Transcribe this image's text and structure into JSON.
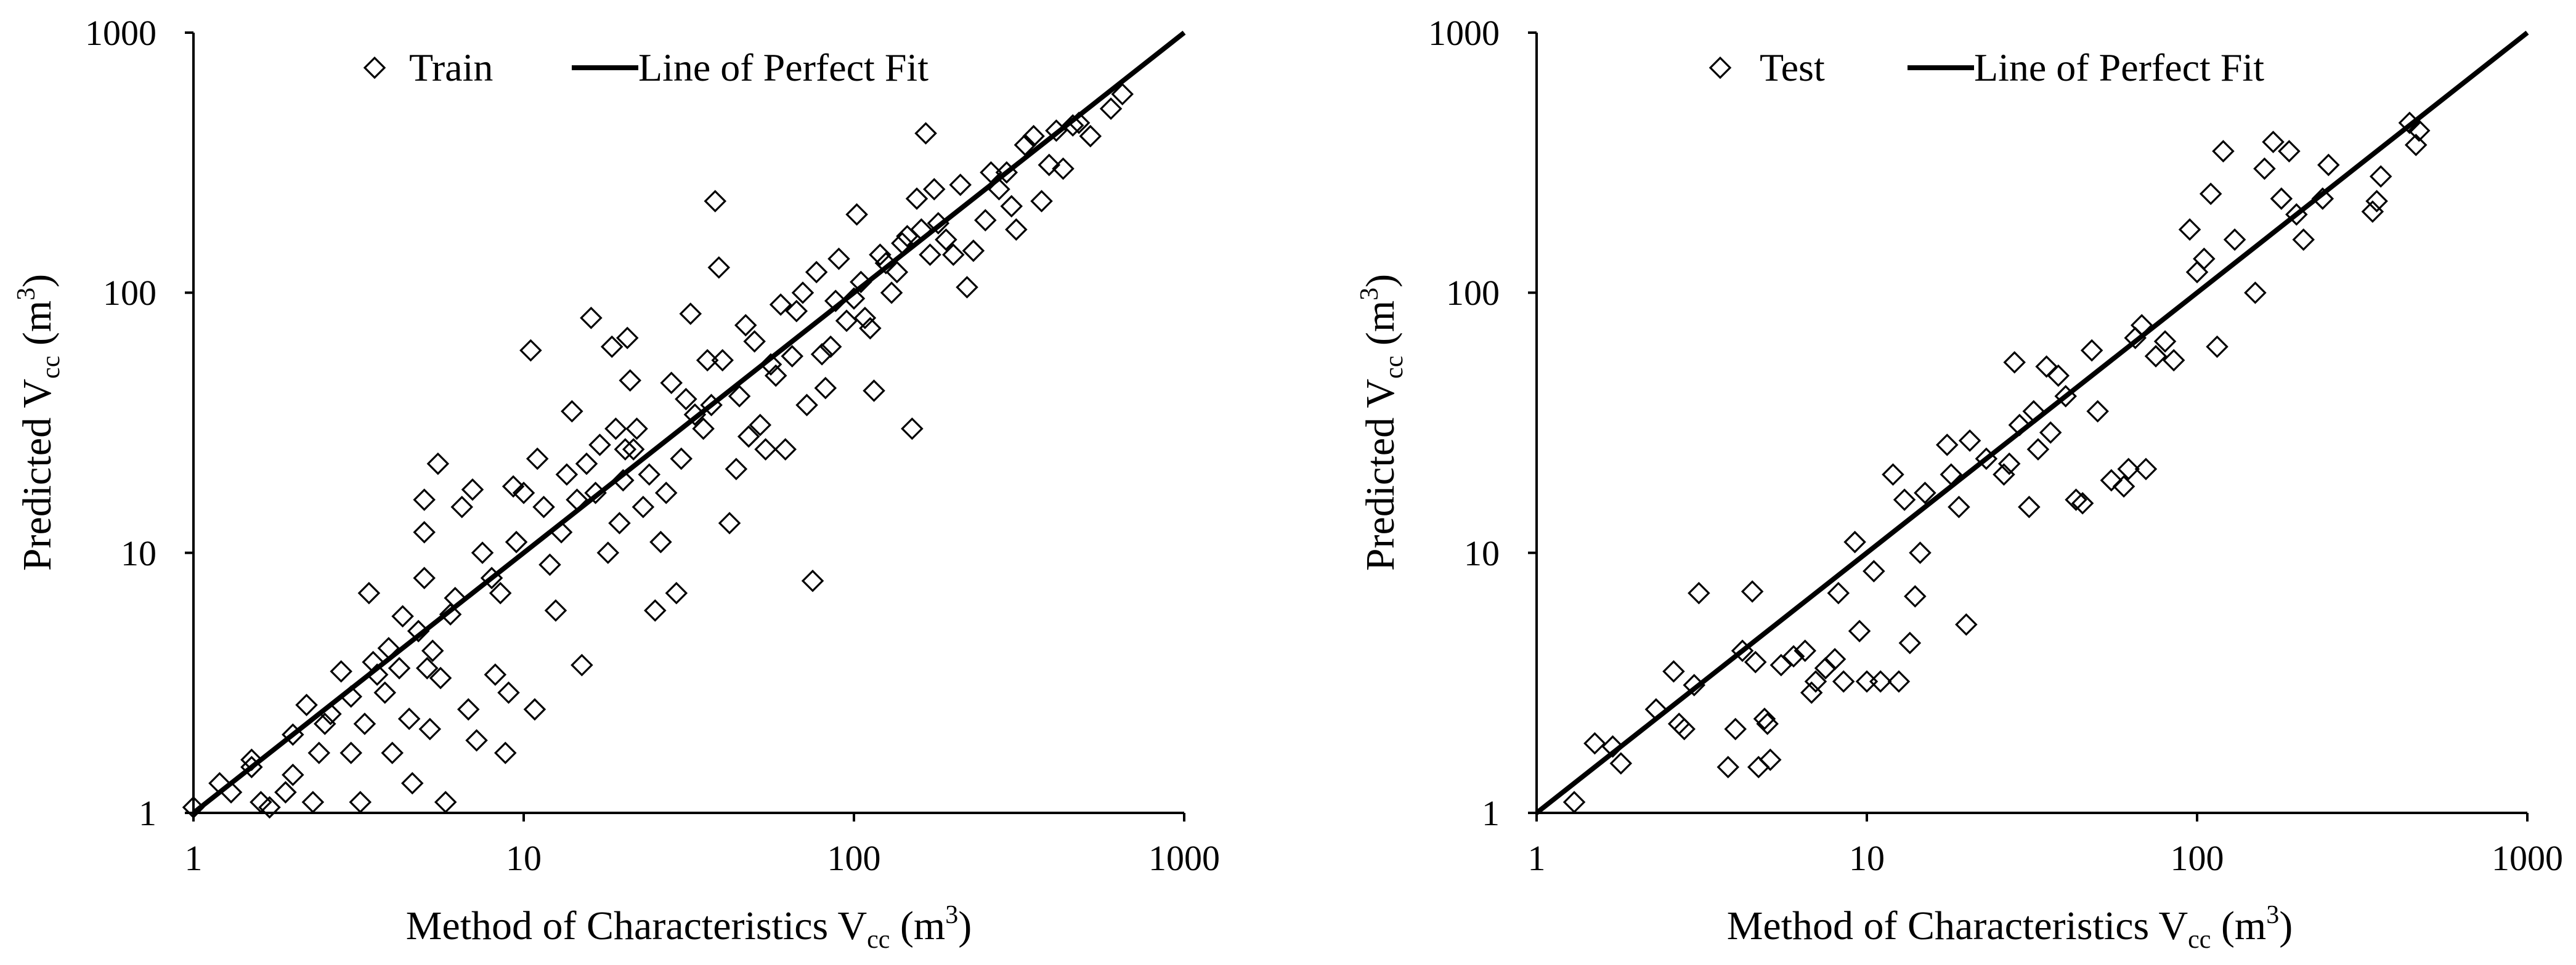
{
  "chart_data": [
    {
      "type": "scatter",
      "id": "train",
      "xscale": "log",
      "yscale": "log",
      "xlim": [
        1,
        1000
      ],
      "ylim": [
        1,
        1000
      ],
      "xticks": [
        "1",
        "10",
        "100",
        "1000"
      ],
      "yticks": [
        "1",
        "10",
        "100",
        "1000"
      ],
      "xlabel": {
        "main": "Method of Characteristics V",
        "sub": "cc",
        "unit_open": " (m",
        "sup": "3",
        "unit_close": ")"
      },
      "ylabel": {
        "main": "Predicted  V",
        "sub": "cc",
        "unit_open": " (m",
        "sup": "3",
        "unit_close": ")"
      },
      "legend": {
        "placement": "top",
        "entries": [
          "Train",
          "Line of Perfect Fit"
        ]
      },
      "series": [
        {
          "name": "Train",
          "marker": "diamond-open",
          "points": [
            [
              1,
              1.05
            ],
            [
              1.2,
              1.3
            ],
            [
              1.3,
              1.2
            ],
            [
              1.5,
              1.5
            ],
            [
              1.5,
              1.6
            ],
            [
              1.6,
              1.1
            ],
            [
              1.7,
              1.05
            ],
            [
              1.9,
              1.2
            ],
            [
              2,
              1.4
            ],
            [
              2,
              2
            ],
            [
              2.2,
              2.6
            ],
            [
              2.3,
              1.1
            ],
            [
              2.4,
              1.7
            ],
            [
              2.5,
              2.2
            ],
            [
              2.6,
              2.4
            ],
            [
              2.8,
              3.5
            ],
            [
              3,
              1.7
            ],
            [
              3,
              2.8
            ],
            [
              3.2,
              1.1
            ],
            [
              3.3,
              2.2
            ],
            [
              3.4,
              7
            ],
            [
              3.5,
              3.8
            ],
            [
              3.6,
              3.4
            ],
            [
              3.8,
              2.9
            ],
            [
              3.9,
              4.3
            ],
            [
              4,
              1.7
            ],
            [
              4.2,
              3.6
            ],
            [
              4.3,
              5.7
            ],
            [
              4.5,
              2.3
            ],
            [
              4.6,
              1.3
            ],
            [
              4.8,
              5
            ],
            [
              5,
              8
            ],
            [
              5,
              12
            ],
            [
              5,
              16
            ],
            [
              5.1,
              3.6
            ],
            [
              5.2,
              2.1
            ],
            [
              5.3,
              4.2
            ],
            [
              5.5,
              22
            ],
            [
              5.6,
              3.3
            ],
            [
              5.8,
              1.1
            ],
            [
              6,
              5.8
            ],
            [
              6.2,
              6.7
            ],
            [
              6.5,
              15
            ],
            [
              6.8,
              2.5
            ],
            [
              7,
              17.5
            ],
            [
              7.2,
              1.9
            ],
            [
              7.5,
              10
            ],
            [
              8,
              8
            ],
            [
              8.2,
              3.4
            ],
            [
              8.5,
              7
            ],
            [
              8.8,
              1.7
            ],
            [
              9,
              2.9
            ],
            [
              9.3,
              18
            ],
            [
              9.5,
              11
            ],
            [
              10,
              17
            ],
            [
              10.5,
              60
            ],
            [
              10.8,
              2.5
            ],
            [
              11,
              23
            ],
            [
              11.5,
              15
            ],
            [
              12,
              9
            ],
            [
              12.5,
              6
            ],
            [
              13,
              12
            ],
            [
              13.5,
              20
            ],
            [
              14,
              35
            ],
            [
              14.5,
              16
            ],
            [
              15,
              3.7
            ],
            [
              15.5,
              22
            ],
            [
              16,
              80
            ],
            [
              16.5,
              17
            ],
            [
              17,
              26
            ],
            [
              18,
              10
            ],
            [
              18.5,
              62
            ],
            [
              19,
              30
            ],
            [
              19.5,
              13
            ],
            [
              20,
              19
            ],
            [
              20.3,
              25
            ],
            [
              20.6,
              67
            ],
            [
              21,
              46
            ],
            [
              21.5,
              25
            ],
            [
              22,
              30
            ],
            [
              23,
              15
            ],
            [
              24,
              20
            ],
            [
              25,
              6
            ],
            [
              26,
              11
            ],
            [
              27,
              17
            ],
            [
              28,
              45
            ],
            [
              29,
              7
            ],
            [
              30,
              23
            ],
            [
              31,
              39
            ],
            [
              32,
              83
            ],
            [
              33,
              34
            ],
            [
              35,
              30
            ],
            [
              36,
              55
            ],
            [
              37,
              37
            ],
            [
              38,
              225
            ],
            [
              39,
              125
            ],
            [
              40,
              55
            ],
            [
              42,
              13
            ],
            [
              44,
              21
            ],
            [
              45,
              40
            ],
            [
              47,
              75
            ],
            [
              48,
              28
            ],
            [
              50,
              65
            ],
            [
              52,
              31
            ],
            [
              54,
              25
            ],
            [
              56,
              53
            ],
            [
              58,
              48
            ],
            [
              60,
              90
            ],
            [
              62,
              25
            ],
            [
              65,
              57
            ],
            [
              67,
              85
            ],
            [
              70,
              100
            ],
            [
              72,
              37
            ],
            [
              75,
              7.8
            ],
            [
              77,
              120
            ],
            [
              80,
              58
            ],
            [
              82,
              43
            ],
            [
              85,
              62
            ],
            [
              88,
              93
            ],
            [
              90,
              135
            ],
            [
              95,
              78
            ],
            [
              100,
              95
            ],
            [
              102,
              200
            ],
            [
              105,
              110
            ],
            [
              108,
              80
            ],
            [
              112,
              73
            ],
            [
              115,
              42
            ],
            [
              120,
              140
            ],
            [
              125,
              130
            ],
            [
              130,
              100
            ],
            [
              135,
              120
            ],
            [
              140,
              155
            ],
            [
              145,
              165
            ],
            [
              150,
              30
            ],
            [
              155,
              230
            ],
            [
              160,
              175
            ],
            [
              165,
              410
            ],
            [
              170,
              140
            ],
            [
              175,
              250
            ],
            [
              180,
              185
            ],
            [
              190,
              160
            ],
            [
              200,
              140
            ],
            [
              210,
              260
            ],
            [
              220,
              105
            ],
            [
              230,
              145
            ],
            [
              250,
              190
            ],
            [
              260,
              290
            ],
            [
              275,
              250
            ],
            [
              290,
              290
            ],
            [
              300,
              215
            ],
            [
              310,
              175
            ],
            [
              330,
              370
            ],
            [
              350,
              400
            ],
            [
              370,
              225
            ],
            [
              390,
              310
            ],
            [
              410,
              420
            ],
            [
              430,
              300
            ],
            [
              460,
              440
            ],
            [
              480,
              450
            ],
            [
              520,
              400
            ],
            [
              600,
              510
            ],
            [
              650,
              580
            ]
          ]
        },
        {
          "name": "Line of Perfect Fit",
          "type": "line",
          "x": [
            1,
            1000
          ],
          "y": [
            1,
            1000
          ]
        }
      ]
    },
    {
      "type": "scatter",
      "id": "test",
      "xscale": "log",
      "yscale": "log",
      "xlim": [
        1,
        1000
      ],
      "ylim": [
        1,
        1000
      ],
      "xticks": [
        "1",
        "10",
        "100",
        "1000"
      ],
      "yticks": [
        "1",
        "10",
        "100",
        "1000"
      ],
      "xlabel": {
        "main": "Method of Characteristics V",
        "sub": "cc",
        "unit_open": " (m",
        "sup": "3",
        "unit_close": ")"
      },
      "ylabel": {
        "main": "Predicted  V",
        "sub": "cc",
        "unit_open": " (m",
        "sup": "3",
        "unit_close": ")"
      },
      "legend": {
        "placement": "top",
        "entries": [
          "Test",
          "Line of Perfect Fit"
        ]
      },
      "series": [
        {
          "name": "Test",
          "marker": "diamond-open",
          "points": [
            [
              1.3,
              1.1
            ],
            [
              1.5,
              1.85
            ],
            [
              1.7,
              1.8
            ],
            [
              1.8,
              1.55
            ],
            [
              2.3,
              2.5
            ],
            [
              2.6,
              3.5
            ],
            [
              2.7,
              2.2
            ],
            [
              2.8,
              2.1
            ],
            [
              3,
              3.1
            ],
            [
              3.1,
              7
            ],
            [
              3.8,
              1.5
            ],
            [
              4,
              2.1
            ],
            [
              4.2,
              4.2
            ],
            [
              4.5,
              7.1
            ],
            [
              4.6,
              3.8
            ],
            [
              4.7,
              1.5
            ],
            [
              4.9,
              2.3
            ],
            [
              5,
              2.2
            ],
            [
              5.1,
              1.6
            ],
            [
              5.5,
              3.7
            ],
            [
              6,
              4
            ],
            [
              6.5,
              4.2
            ],
            [
              6.8,
              2.9
            ],
            [
              7,
              3.2
            ],
            [
              7.5,
              3.6
            ],
            [
              8,
              3.9
            ],
            [
              8.2,
              7
            ],
            [
              8.5,
              3.2
            ],
            [
              9.2,
              11
            ],
            [
              9.5,
              5
            ],
            [
              10,
              3.2
            ],
            [
              10.5,
              8.5
            ],
            [
              11,
              3.2
            ],
            [
              12,
              20
            ],
            [
              12.5,
              3.2
            ],
            [
              13,
              16
            ],
            [
              13.5,
              4.5
            ],
            [
              14,
              6.8
            ],
            [
              14.5,
              10
            ],
            [
              15,
              17
            ],
            [
              17.5,
              26
            ],
            [
              18,
              20
            ],
            [
              19,
              15
            ],
            [
              20,
              5.3
            ],
            [
              20.5,
              27
            ],
            [
              23,
              23
            ],
            [
              26,
              20
            ],
            [
              27,
              22
            ],
            [
              28,
              54
            ],
            [
              29,
              31
            ],
            [
              31,
              15
            ],
            [
              32,
              35
            ],
            [
              33,
              25
            ],
            [
              35,
              52
            ],
            [
              36,
              29
            ],
            [
              38,
              48
            ],
            [
              40,
              40
            ],
            [
              43,
              16
            ],
            [
              45,
              15.5
            ],
            [
              48,
              60
            ],
            [
              50,
              35
            ],
            [
              55,
              19
            ],
            [
              60,
              18
            ],
            [
              62,
              21
            ],
            [
              65,
              67
            ],
            [
              68,
              75
            ],
            [
              70,
              21
            ],
            [
              75,
              57
            ],
            [
              80,
              65
            ],
            [
              85,
              55
            ],
            [
              95,
              175
            ],
            [
              100,
              120
            ],
            [
              105,
              135
            ],
            [
              110,
              240
            ],
            [
              115,
              62
            ],
            [
              120,
              350
            ],
            [
              130,
              160
            ],
            [
              150,
              100
            ],
            [
              160,
              300
            ],
            [
              170,
              380
            ],
            [
              180,
              230
            ],
            [
              190,
              350
            ],
            [
              200,
              200
            ],
            [
              210,
              160
            ],
            [
              240,
              230
            ],
            [
              250,
              310
            ],
            [
              340,
              205
            ],
            [
              350,
              225
            ],
            [
              360,
              280
            ],
            [
              440,
              450
            ],
            [
              460,
              370
            ],
            [
              470,
              420
            ]
          ]
        },
        {
          "name": "Line of Perfect Fit",
          "type": "line",
          "x": [
            1,
            1000
          ],
          "y": [
            1,
            1000
          ]
        }
      ]
    }
  ]
}
